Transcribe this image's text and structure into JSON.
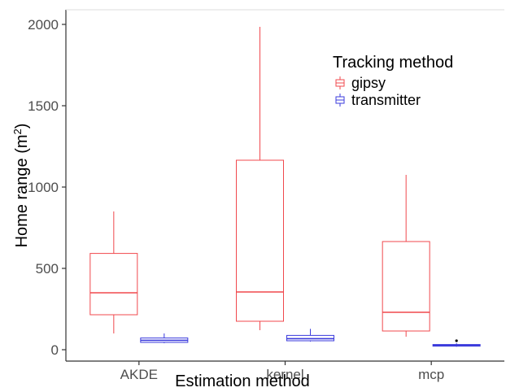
{
  "chart_data": {
    "type": "boxplot",
    "title": "",
    "xlabel": "Estimation method",
    "ylabel": "Home range (m",
    "ylabel_superscript": "2",
    "ylabel_suffix": ")",
    "ylim": [
      -70,
      2090
    ],
    "yticks": [
      0,
      500,
      1000,
      1500,
      2000
    ],
    "categories": [
      "AKDE",
      "kernel",
      "mcp"
    ],
    "legend": {
      "title": "Tracking method",
      "placement": "top-right"
    },
    "series": [
      {
        "name": "gipsy",
        "color": "#f0484d",
        "boxes": [
          {
            "min": 100,
            "q1": 215,
            "median": 350,
            "q3": 592,
            "max": 850,
            "outliers": []
          },
          {
            "min": 120,
            "q1": 175,
            "median": 355,
            "q3": 1165,
            "max": 1985,
            "outliers": []
          },
          {
            "min": 80,
            "q1": 115,
            "median": 230,
            "q3": 665,
            "max": 1075,
            "outliers": []
          }
        ]
      },
      {
        "name": "transmitter",
        "color": "#3b3bdc",
        "boxes": [
          {
            "min": 40,
            "q1": 45,
            "median": 58,
            "q3": 72,
            "max": 100,
            "outliers": []
          },
          {
            "min": 50,
            "q1": 55,
            "median": 68,
            "q3": 88,
            "max": 128,
            "outliers": []
          },
          {
            "min": 18,
            "q1": 22,
            "median": 26,
            "q3": 32,
            "max": 40,
            "outliers": [
              55
            ]
          }
        ]
      }
    ]
  }
}
